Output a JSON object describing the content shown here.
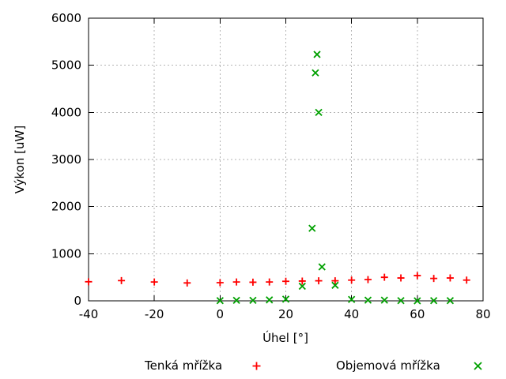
{
  "window": {
    "background": "#ffffff"
  },
  "chart_data": {
    "type": "scatter",
    "title": "",
    "xlabel": "Úhel [°]",
    "ylabel": "Výkon [uW]",
    "xlim": [
      -40,
      80
    ],
    "ylim": [
      0,
      6000
    ],
    "x_ticks": [
      -40,
      -20,
      0,
      20,
      40,
      60,
      80
    ],
    "y_ticks": [
      0,
      1000,
      2000,
      3000,
      4000,
      5000,
      6000
    ],
    "grid": true,
    "grid_color": "#b3b3b3",
    "axis_color": "#000000",
    "legend_position": "below",
    "series": [
      {
        "name": "Tenká mřížka",
        "marker": "plus",
        "color": "#ff0000",
        "points": [
          [
            -40,
            405
          ],
          [
            -30,
            430
          ],
          [
            -20,
            400
          ],
          [
            -10,
            380
          ],
          [
            0,
            385
          ],
          [
            5,
            400
          ],
          [
            10,
            395
          ],
          [
            15,
            400
          ],
          [
            20,
            415
          ],
          [
            25,
            420
          ],
          [
            30,
            425
          ],
          [
            35,
            425
          ],
          [
            40,
            440
          ],
          [
            45,
            450
          ],
          [
            50,
            500
          ],
          [
            55,
            485
          ],
          [
            60,
            535
          ],
          [
            65,
            475
          ],
          [
            70,
            485
          ],
          [
            75,
            440
          ]
        ]
      },
      {
        "name": "Objemová mřížka",
        "marker": "cross",
        "color": "#00a000",
        "points": [
          [
            0,
            5
          ],
          [
            5,
            10
          ],
          [
            10,
            10
          ],
          [
            15,
            20
          ],
          [
            20,
            35
          ],
          [
            25,
            310
          ],
          [
            28,
            1540
          ],
          [
            29,
            4840
          ],
          [
            29.5,
            5230
          ],
          [
            30,
            4000
          ],
          [
            31,
            720
          ],
          [
            35,
            330
          ],
          [
            40,
            30
          ],
          [
            45,
            15
          ],
          [
            50,
            15
          ],
          [
            55,
            5
          ],
          [
            60,
            0
          ],
          [
            65,
            5
          ],
          [
            70,
            5
          ]
        ]
      }
    ]
  }
}
